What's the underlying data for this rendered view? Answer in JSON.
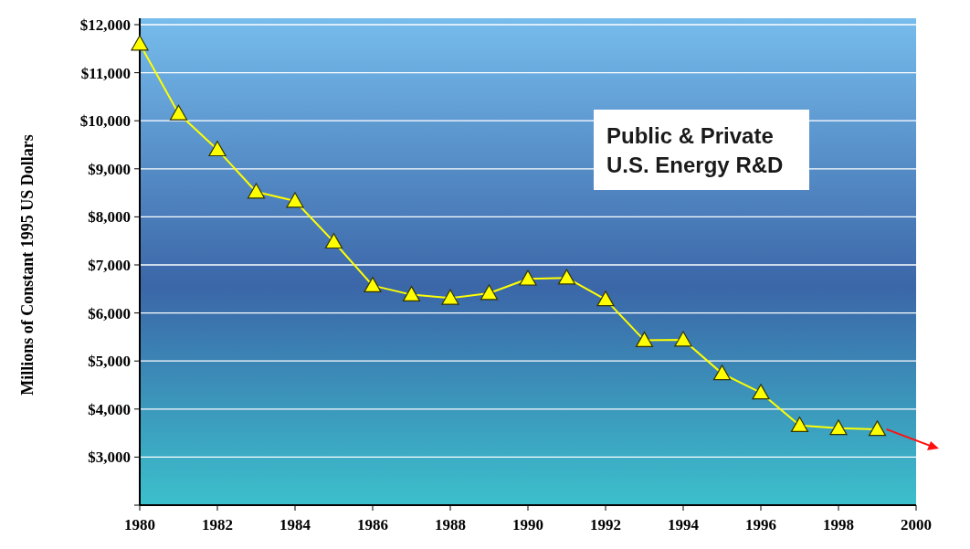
{
  "chart_data": {
    "type": "line",
    "ylabel": "Millions of Constant 1995 US Dollars",
    "annotations": [
      "Public & Private\nU.S. Energy R&D"
    ],
    "x": [
      1980,
      1981,
      1982,
      1983,
      1984,
      1985,
      1986,
      1987,
      1988,
      1989,
      1990,
      1991,
      1992,
      1993,
      1994,
      1995,
      1996,
      1997,
      1998,
      1999
    ],
    "series": [
      {
        "color": "#ffff00",
        "values": [
          11600,
          10150,
          9400,
          8520,
          8330,
          7480,
          6570,
          6380,
          6310,
          6410,
          6710,
          6730,
          6280,
          5430,
          5440,
          4740,
          4340,
          3660,
          3600,
          3580
        ]
      }
    ],
    "xlim": [
      1980,
      2000
    ],
    "xticks": [
      1980,
      1982,
      1984,
      1986,
      1988,
      1990,
      1992,
      1994,
      1996,
      1998,
      2000
    ],
    "ylim": [
      2000,
      12000
    ],
    "yticks": [
      {
        "value": 2000,
        "label": null
      },
      {
        "value": 3000,
        "label": "$3,000"
      },
      {
        "value": 4000,
        "label": "$4,000"
      },
      {
        "value": 5000,
        "label": "$5,000"
      },
      {
        "value": 6000,
        "label": "$6,000"
      },
      {
        "value": 7000,
        "label": "$7,000"
      },
      {
        "value": 8000,
        "label": "$8,000"
      },
      {
        "value": 9000,
        "label": "$9,000"
      },
      {
        "value": 10000,
        "label": "$10,000"
      },
      {
        "value": 11000,
        "label": "$11,000"
      },
      {
        "value": 12000,
        "label": "$12,000"
      }
    ],
    "grid": "y",
    "marker": "triangle",
    "line_style": "solid"
  }
}
